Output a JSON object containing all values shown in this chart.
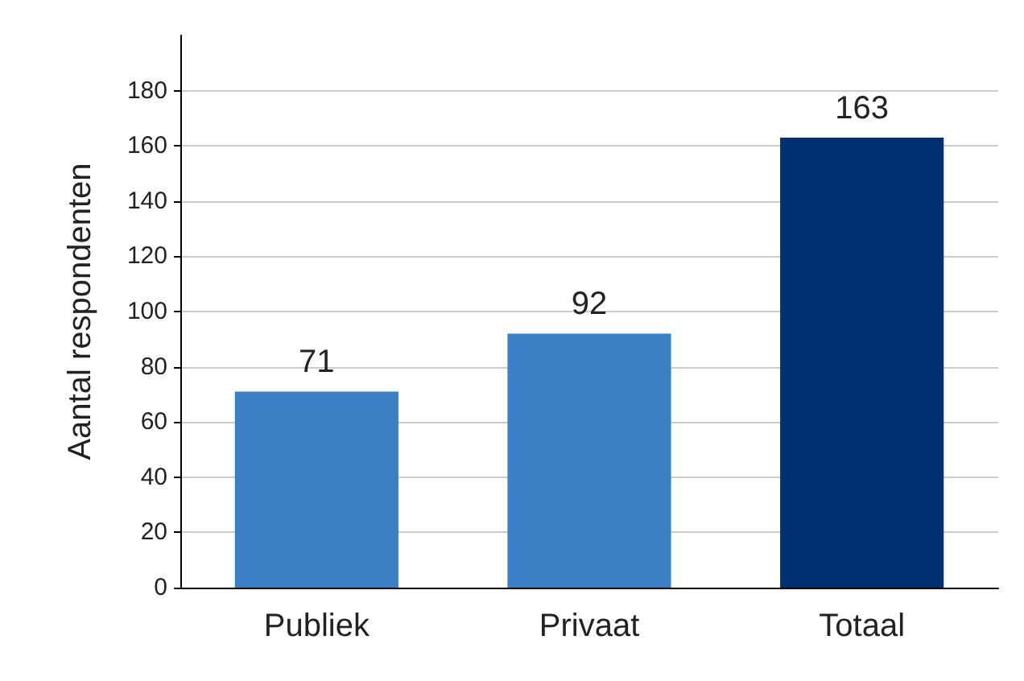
{
  "chart_data": {
    "type": "bar",
    "ylabel": "Aantal respondenten",
    "categories": [
      "Publiek",
      "Privaat",
      "Totaal"
    ],
    "values": [
      71,
      92,
      163
    ],
    "colors": [
      "#3b7fc4",
      "#3b7fc4",
      "#00306f"
    ],
    "ylim": [
      0,
      200
    ],
    "yticks": [
      0,
      20,
      40,
      60,
      80,
      100,
      120,
      140,
      160,
      180
    ],
    "grid": "y",
    "data_labels": true
  }
}
